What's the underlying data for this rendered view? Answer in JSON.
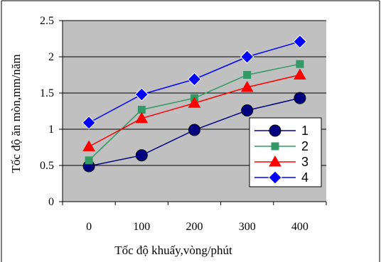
{
  "chart_data": {
    "type": "line",
    "xlabel": "Tốc độ khuấy,vòng/phút",
    "ylabel": "Tốc độ ăn mòn,mm/năm",
    "categories": [
      "0",
      "100",
      "200",
      "300",
      "400"
    ],
    "ylim": [
      0,
      2.5
    ],
    "yticks": [
      "0",
      "0.5",
      "1",
      "1.5",
      "2",
      "2.5"
    ],
    "grid": "horizontal",
    "plot_background": "#c0c0c0",
    "legend_position": "right",
    "series": [
      {
        "name": "1",
        "values": [
          0.49,
          0.64,
          0.99,
          1.26,
          1.43
        ],
        "color": "#000080",
        "marker": "circle"
      },
      {
        "name": "2",
        "values": [
          0.57,
          1.27,
          1.43,
          1.75,
          1.9
        ],
        "color": "#339966",
        "marker": "square"
      },
      {
        "name": "3",
        "values": [
          0.76,
          1.15,
          1.36,
          1.58,
          1.75
        ],
        "color": "#ff0000",
        "marker": "triangle"
      },
      {
        "name": "4",
        "values": [
          1.09,
          1.48,
          1.69,
          2.0,
          2.21
        ],
        "color": "#0000ff",
        "marker": "diamond"
      }
    ]
  }
}
